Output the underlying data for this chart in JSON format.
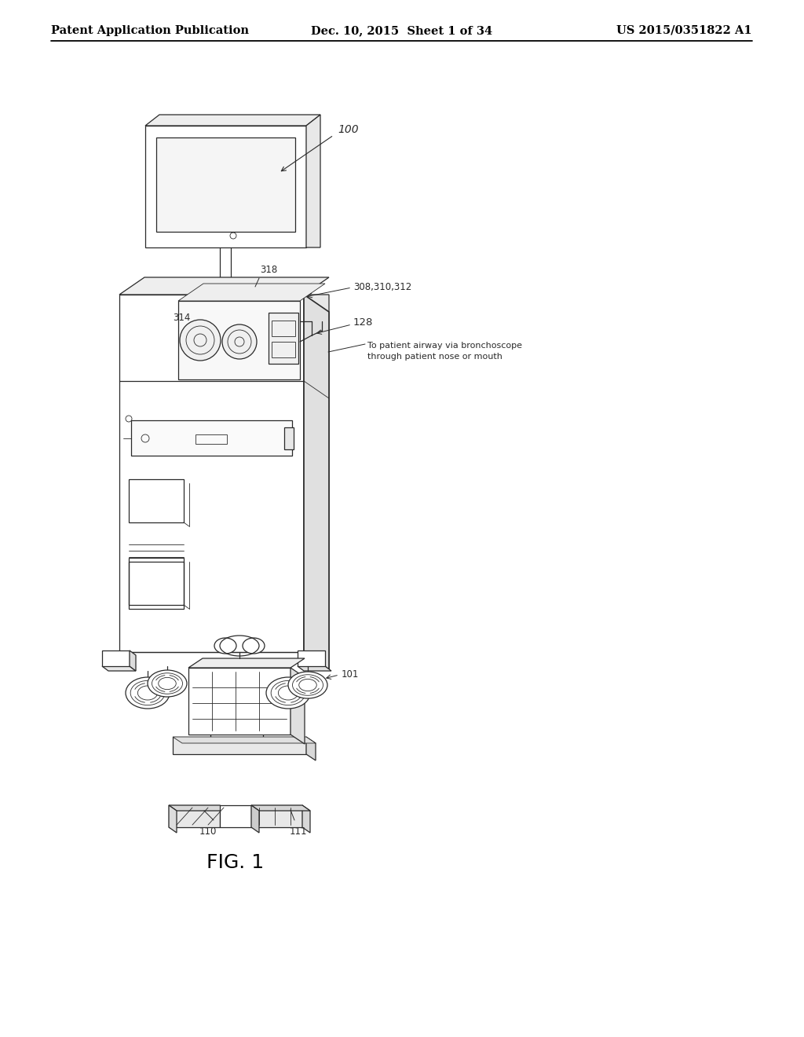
{
  "background_color": "#ffffff",
  "header_left": "Patent Application Publication",
  "header_center": "Dec. 10, 2015  Sheet 1 of 34",
  "header_right": "US 2015/0351822 A1",
  "figure_label": "FIG. 1",
  "annotation_100": "100",
  "annotation_318": "318",
  "annotation_308": "308,310,312",
  "annotation_128": "128",
  "annotation_314": "314",
  "annotation_101": "101",
  "annotation_110": "110",
  "annotation_111": "111",
  "annotation_text": "To patient airway via bronchoscope\nthrough patient nose or mouth",
  "page_width": 10.24,
  "page_height": 13.2,
  "dpi": 100,
  "header_font_size": 10.5,
  "figure_label_font_size": 18,
  "annotation_font_size": 8.5,
  "lc": "#2a2a2a",
  "thin_lw": 0.6,
  "medium_lw": 0.9,
  "thick_lw": 1.2
}
